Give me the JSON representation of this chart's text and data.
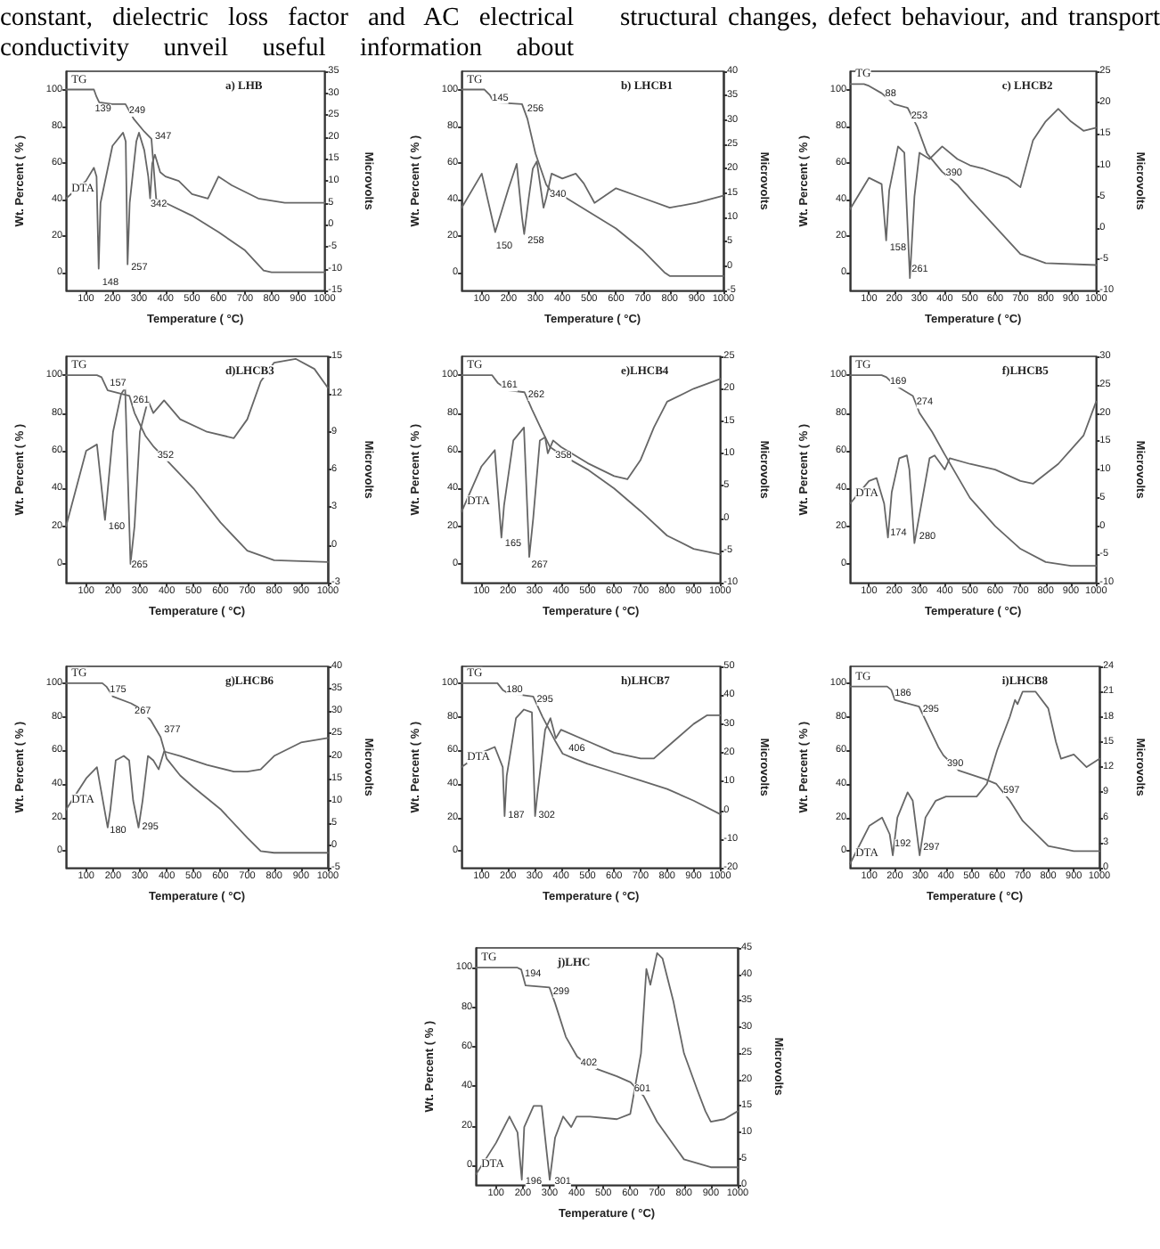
{
  "chart_data": [
    {
      "type": "line",
      "title": "a) LHB",
      "xlabel": "Temperature ( °C)",
      "ylabel": "Wt. Percent ( % )",
      "y2label": "Microvolts",
      "xlim": [
        25,
        1000
      ],
      "xticks": [
        100,
        200,
        300,
        400,
        500,
        600,
        700,
        800,
        900,
        1000
      ],
      "ylim": [
        -10,
        110
      ],
      "yticks": [
        0,
        20,
        40,
        60,
        80,
        100
      ],
      "y2lim": [
        -15,
        35
      ],
      "y2ticks": [
        -15,
        -10,
        -5,
        0,
        5,
        10,
        15,
        20,
        25,
        30,
        35
      ],
      "marker": "none",
      "legend": false,
      "series": [
        {
          "name": "TG",
          "color": "#666666",
          "x": [
            25,
            130,
            140,
            150,
            200,
            249,
            280,
            320,
            347,
            355,
            365,
            400,
            500,
            600,
            700,
            770,
            800,
            1000
          ],
          "values": [
            100,
            100,
            96,
            93,
            92,
            92,
            84,
            77,
            73,
            58,
            40,
            38,
            31,
            22,
            12,
            1,
            0,
            0
          ]
        },
        {
          "name": "DTA",
          "color": "#666666",
          "axis": "y2",
          "x": [
            25,
            100,
            130,
            140,
            148,
            155,
            200,
            240,
            250,
            257,
            265,
            290,
            300,
            320,
            335,
            342,
            350,
            360,
            380,
            400,
            450,
            500,
            560,
            600,
            650,
            750,
            850,
            1000
          ],
          "values": [
            6,
            10,
            13,
            11,
            -10,
            5,
            18,
            21,
            19,
            -9,
            5,
            19,
            21,
            17,
            11,
            6,
            14,
            16,
            12,
            11,
            10,
            7,
            6,
            11,
            9,
            6,
            5,
            5
          ]
        }
      ],
      "annotations": [
        "constant, dielectric loss factor and AC electrical conductivity unveil useful information about",
        "structural changes, defect behaviour, and transport",
        {
          "text": "139",
          "x": 120,
          "y": 93
        },
        {
          "text": "249",
          "x": 249,
          "y": 92
        },
        {
          "text": "347",
          "x": 347,
          "y": 78
        },
        {
          "text": "342",
          "x": 330,
          "y": 41
        },
        {
          "text": "148",
          "x": 148,
          "y": -2
        },
        {
          "text": "257",
          "x": 257,
          "y": 6
        }
      ]
    },
    {
      "type": "line",
      "title": "b) LHCB1",
      "xlabel": "Temperature ( °C)",
      "ylabel": "Wt. Percent ( % )",
      "y2label": "Microvolts",
      "xlim": [
        25,
        1000
      ],
      "xticks": [
        100,
        200,
        300,
        400,
        500,
        600,
        700,
        800,
        900,
        1000
      ],
      "ylim": [
        -10,
        110
      ],
      "yticks": [
        0,
        20,
        40,
        60,
        80,
        100
      ],
      "y2lim": [
        -5,
        40
      ],
      "y2ticks": [
        -5,
        0,
        5,
        10,
        15,
        20,
        25,
        30,
        35,
        40
      ],
      "marker": "none",
      "legend": false,
      "series": [
        {
          "name": "TG",
          "color": "#666666",
          "x": [
            25,
            110,
            130,
            145,
            250,
            270,
            300,
            340,
            360,
            400,
            500,
            600,
            700,
            780,
            800,
            1000
          ],
          "values": [
            100,
            100,
            97,
            93,
            92,
            84,
            65,
            48,
            44,
            42,
            33,
            24,
            12,
            0,
            -2,
            -2
          ]
        },
        {
          "color": "#666666",
          "axis": "y2",
          "x": [
            25,
            100,
            150,
            200,
            230,
            250,
            258,
            275,
            290,
            305,
            330,
            340,
            360,
            400,
            450,
            480,
            520,
            600,
            700,
            800,
            900,
            1000
          ],
          "values": [
            12,
            19,
            7,
            16,
            21,
            10,
            6.6,
            14,
            20,
            21.5,
            12,
            14,
            19,
            18,
            19,
            17,
            13,
            16,
            14,
            12,
            13,
            14.5
          ]
        }
      ],
      "annotations": [
        {
          "text": "145",
          "x": 125,
          "y": 99
        },
        {
          "text": "256",
          "x": 256,
          "y": 93
        },
        {
          "text": "340",
          "x": 340,
          "y": 46
        },
        {
          "text": "150",
          "x": 140,
          "y": 18
        },
        {
          "text": "258",
          "x": 258,
          "y": 21
        }
      ]
    },
    {
      "type": "line",
      "title": "c) LHCB2",
      "xlabel": "Temperature ( °C)",
      "ylabel": "Wt. Percent ( % )",
      "y2label": "Microvolts",
      "xlim": [
        25,
        1000
      ],
      "xticks": [
        100,
        200,
        300,
        400,
        500,
        600,
        700,
        800,
        900,
        1000
      ],
      "ylim": [
        -10,
        110
      ],
      "yticks": [
        0,
        20,
        40,
        60,
        80,
        100
      ],
      "y2lim": [
        -10,
        25
      ],
      "y2ticks": [
        -10,
        -5,
        0,
        5,
        10,
        15,
        20,
        25
      ],
      "marker": "none",
      "legend": false,
      "series": [
        {
          "name": "TG",
          "color": "#666666",
          "x": [
            25,
            80,
            100,
            150,
            200,
            253,
            290,
            330,
            390,
            450,
            500,
            600,
            700,
            800,
            1000
          ],
          "values": [
            103,
            103,
            102,
            98,
            92,
            90,
            80,
            65,
            55,
            48,
            40,
            25,
            10,
            5,
            4
          ]
        },
        {
          "color": "#666666",
          "axis": "y2",
          "x": [
            25,
            100,
            150,
            168,
            180,
            215,
            240,
            262,
            280,
            300,
            340,
            390,
            450,
            500,
            550,
            650,
            700,
            750,
            800,
            850,
            900,
            950,
            1000
          ],
          "values": [
            3,
            8,
            7,
            -2,
            6,
            13,
            12,
            -8,
            5,
            12,
            11,
            13,
            11,
            10,
            9.5,
            8,
            6.5,
            14,
            17,
            19,
            17,
            15.5,
            16
          ]
        }
      ],
      "annotations": [
        {
          "text": "88",
          "x": 150,
          "y": 101
        },
        {
          "text": "253",
          "x": 253,
          "y": 89
        },
        {
          "text": "390",
          "x": 390,
          "y": 58
        },
        {
          "text": "158",
          "x": 168,
          "y": 17
        },
        {
          "text": "261",
          "x": 255,
          "y": 5
        }
      ]
    },
    {
      "type": "line",
      "title": "d)LHCB3",
      "xlabel": "Temperature ( °C)",
      "ylabel": "Wt. Percent ( % )",
      "y2label": "Microvolts",
      "xlim": [
        25,
        1000
      ],
      "xticks": [
        100,
        200,
        300,
        400,
        500,
        600,
        700,
        800,
        900,
        1000
      ],
      "ylim": [
        -10,
        110
      ],
      "yticks": [
        0,
        20,
        40,
        60,
        80,
        100
      ],
      "y2lim": [
        -3,
        15
      ],
      "y2ticks": [
        -3,
        0,
        3,
        6,
        9,
        12,
        15
      ],
      "marker": "none",
      "legend": false,
      "series": [
        {
          "name": "TG",
          "color": "#666666",
          "x": [
            25,
            140,
            157,
            180,
            261,
            280,
            320,
            352,
            400,
            500,
            600,
            700,
            800,
            1000
          ],
          "values": [
            100,
            100,
            99,
            92,
            89,
            80,
            68,
            62,
            55,
            40,
            22,
            7,
            2,
            1
          ]
        },
        {
          "color": "#666666",
          "axis": "y2",
          "x": [
            25,
            100,
            140,
            170,
            200,
            230,
            245,
            265,
            280,
            300,
            330,
            350,
            390,
            450,
            550,
            650,
            700,
            750,
            800,
            880,
            950,
            1000
          ],
          "values": [
            1.5,
            7.5,
            8,
            2,
            9,
            12,
            12.5,
            -1.5,
            1.5,
            9,
            11.5,
            10.5,
            11.5,
            10,
            9,
            8.5,
            10,
            13,
            14.5,
            14.8,
            14,
            12.5
          ]
        }
      ],
      "annotations": [
        {
          "text": "157",
          "x": 175,
          "y": 99
        },
        {
          "text": "261",
          "x": 261,
          "y": 90
        },
        {
          "text": "352",
          "x": 352,
          "y": 61
        },
        {
          "text": "160",
          "x": 170,
          "y": 23
        },
        {
          "text": "265",
          "x": 255,
          "y": 3
        }
      ]
    },
    {
      "type": "line",
      "title": "e)LHCB4",
      "xlabel": "Temperature ( °C)",
      "ylabel": "Wt. Percent ( % )",
      "y2label": "Microvolts",
      "xlim": [
        25,
        1000
      ],
      "xticks": [
        100,
        200,
        300,
        400,
        500,
        600,
        700,
        800,
        900,
        1000
      ],
      "ylim": [
        -10,
        110
      ],
      "yticks": [
        0,
        20,
        40,
        60,
        80,
        100
      ],
      "y2lim": [
        -10,
        25
      ],
      "y2ticks": [
        -10,
        -5,
        0,
        5,
        10,
        15,
        20,
        25
      ],
      "marker": "none",
      "legend": false,
      "series": [
        {
          "name": "TG",
          "color": "#666666",
          "x": [
            25,
            140,
            161,
            200,
            262,
            290,
            330,
            358,
            400,
            500,
            600,
            700,
            800,
            900,
            1000
          ],
          "values": [
            100,
            100,
            96,
            92,
            91,
            82,
            70,
            62,
            58,
            50,
            40,
            28,
            15,
            8,
            5
          ]
        },
        {
          "name": "DTA",
          "color": "#666666",
          "axis": "y2",
          "x": [
            25,
            100,
            150,
            175,
            185,
            220,
            260,
            280,
            295,
            320,
            340,
            350,
            370,
            400,
            500,
            600,
            650,
            700,
            750,
            800,
            900,
            1000
          ],
          "values": [
            1,
            8,
            10.5,
            -3,
            2,
            12,
            14,
            -6,
            0,
            12,
            12.5,
            10,
            12,
            11,
            8.5,
            6.5,
            6,
            9,
            14,
            18,
            20,
            21.5
          ]
        }
      ],
      "annotations": [
        {
          "text": "161",
          "x": 161,
          "y": 98
        },
        {
          "text": "262",
          "x": 262,
          "y": 93
        },
        {
          "text": "358",
          "x": 365,
          "y": 61
        },
        {
          "text": "165",
          "x": 175,
          "y": 14
        },
        {
          "text": "267",
          "x": 275,
          "y": 3
        }
      ]
    },
    {
      "type": "line",
      "title": "f)LHCB5",
      "xlabel": "Temperature ( °C)",
      "ylabel": "Wt. Percent ( % )",
      "y2label": "Microvolts",
      "xlim": [
        25,
        1000
      ],
      "xticks": [
        100,
        200,
        300,
        400,
        500,
        600,
        700,
        800,
        900,
        1000
      ],
      "ylim": [
        -10,
        110
      ],
      "yticks": [
        0,
        20,
        40,
        60,
        80,
        100
      ],
      "y2lim": [
        -10,
        30
      ],
      "y2ticks": [
        -10,
        -5,
        0,
        5,
        10,
        15,
        20,
        25,
        30
      ],
      "marker": "none",
      "legend": false,
      "series": [
        {
          "name": "TG",
          "color": "#666666",
          "x": [
            25,
            150,
            169,
            200,
            274,
            300,
            350,
            400,
            500,
            600,
            700,
            800,
            900,
            1000
          ],
          "values": [
            100,
            100,
            99,
            95,
            89,
            80,
            70,
            58,
            35,
            20,
            8,
            1,
            -1,
            -1
          ]
        },
        {
          "name": "DTA",
          "color": "#666666",
          "axis": "y2",
          "x": [
            25,
            100,
            130,
            160,
            175,
            190,
            220,
            250,
            260,
            280,
            300,
            340,
            360,
            400,
            420,
            500,
            600,
            700,
            750,
            850,
            950,
            1000
          ],
          "values": [
            4,
            8,
            8.5,
            4,
            -2,
            6,
            12,
            12.5,
            10,
            -3,
            2,
            12,
            12.5,
            10,
            12,
            11,
            10,
            8,
            7.5,
            11,
            16,
            22
          ]
        }
      ],
      "annotations": [
        {
          "text": "169",
          "x": 169,
          "y": 100
        },
        {
          "text": "274",
          "x": 274,
          "y": 89
        },
        {
          "text": "174",
          "x": 170,
          "y": 20
        },
        {
          "text": "280",
          "x": 285,
          "y": 18
        }
      ]
    },
    {
      "type": "line",
      "title": "g)LHCB6",
      "xlabel": "Temperature ( °C)",
      "ylabel": "Wt. Percent ( % )",
      "y2label": "Microvolts",
      "xlim": [
        25,
        1000
      ],
      "xticks": [
        100,
        200,
        300,
        400,
        500,
        600,
        700,
        800,
        900,
        1000
      ],
      "ylim": [
        -10,
        110
      ],
      "yticks": [
        0,
        20,
        40,
        60,
        80,
        100
      ],
      "y2lim": [
        -5,
        40
      ],
      "y2ticks": [
        -5,
        0,
        5,
        10,
        15,
        20,
        25,
        30,
        35,
        40
      ],
      "marker": "none",
      "legend": false,
      "series": [
        {
          "name": "TG",
          "color": "#666666",
          "x": [
            25,
            160,
            175,
            200,
            267,
            300,
            340,
            377,
            400,
            450,
            500,
            600,
            700,
            750,
            800,
            1000
          ],
          "values": [
            100,
            100,
            98,
            92,
            88,
            85,
            78,
            68,
            55,
            45,
            38,
            25,
            8,
            0,
            -1,
            -1
          ]
        },
        {
          "name": "DTA",
          "color": "#666666",
          "axis": "y2",
          "x": [
            25,
            100,
            140,
            180,
            190,
            210,
            240,
            260,
            275,
            295,
            310,
            330,
            350,
            370,
            390,
            450,
            550,
            650,
            700,
            750,
            800,
            900,
            1000
          ],
          "values": [
            8,
            15,
            17.5,
            4,
            8,
            19,
            20,
            19,
            10,
            4,
            10,
            20,
            19,
            17,
            21,
            20,
            18,
            16.5,
            16.5,
            17,
            20,
            23,
            24
          ]
        }
      ],
      "annotations": [
        {
          "text": "175",
          "x": 175,
          "y": 100
        },
        {
          "text": "267",
          "x": 267,
          "y": 87
        },
        {
          "text": "377",
          "x": 377,
          "y": 76
        },
        {
          "text": "180",
          "x": 175,
          "y": 16
        },
        {
          "text": "295",
          "x": 295,
          "y": 18
        }
      ]
    },
    {
      "type": "line",
      "title": "h)LHCB7",
      "xlabel": "Temperature ( °C)",
      "ylabel": "Wt. Percent ( % )",
      "y2label": "Microvolts",
      "xlim": [
        25,
        1000
      ],
      "xticks": [
        100,
        200,
        300,
        400,
        500,
        600,
        700,
        800,
        900,
        1000
      ],
      "ylim": [
        -10,
        110
      ],
      "yticks": [
        0,
        20,
        40,
        60,
        80,
        100
      ],
      "y2lim": [
        -20,
        50
      ],
      "y2ticks": [
        -20,
        -10,
        0,
        10,
        20,
        30,
        40,
        50
      ],
      "marker": "none",
      "legend": false,
      "series": [
        {
          "name": "TG",
          "color": "#666666",
          "x": [
            25,
            160,
            180,
            200,
            295,
            330,
            380,
            406,
            450,
            500,
            600,
            700,
            800,
            900,
            1000
          ],
          "values": [
            100,
            100,
            96,
            94,
            92,
            80,
            65,
            58,
            55,
            52,
            47,
            42,
            37,
            30,
            22
          ]
        },
        {
          "name": "DTA",
          "color": "#666666",
          "axis": "y2",
          "x": [
            25,
            100,
            150,
            180,
            187,
            195,
            230,
            260,
            290,
            302,
            310,
            340,
            360,
            380,
            400,
            500,
            600,
            700,
            750,
            800,
            900,
            950,
            1000
          ],
          "values": [
            15,
            20,
            22,
            15,
            -2,
            12,
            32,
            35,
            34,
            -2,
            5,
            28,
            32,
            25,
            28,
            24,
            20,
            18,
            18,
            22,
            30,
            33,
            33
          ]
        }
      ],
      "annotations": [
        {
          "text": "180",
          "x": 180,
          "y": 100
        },
        {
          "text": "295",
          "x": 295,
          "y": 94
        },
        {
          "text": "406",
          "x": 415,
          "y": 65
        },
        {
          "text": "187",
          "x": 187,
          "y": 25
        },
        {
          "text": "302",
          "x": 302,
          "y": 25
        }
      ]
    },
    {
      "type": "line",
      "title": "i)LHCB8",
      "xlabel": "Temperature ( °C)",
      "ylabel": "Wt. Percent ( % )",
      "y2label": "Microvolts",
      "xlim": [
        25,
        1000
      ],
      "xticks": [
        100,
        200,
        300,
        400,
        500,
        600,
        700,
        800,
        900,
        1000
      ],
      "ylim": [
        -10,
        110
      ],
      "yticks": [
        0,
        20,
        40,
        60,
        80,
        100
      ],
      "y2lim": [
        0,
        24
      ],
      "y2ticks": [
        0,
        3,
        6,
        9,
        12,
        15,
        18,
        21,
        24
      ],
      "marker": "none",
      "legend": false,
      "series": [
        {
          "name": "TG",
          "color": "#666666",
          "x": [
            25,
            170,
            186,
            200,
            295,
            320,
            370,
            390,
            450,
            550,
            597,
            650,
            700,
            800,
            900,
            1000
          ],
          "values": [
            98,
            98,
            96,
            90,
            86,
            78,
            62,
            57,
            48,
            43,
            40,
            30,
            18,
            3,
            0,
            0
          ]
        },
        {
          "name": "DTA",
          "color": "#666666",
          "axis": "y2",
          "x": [
            25,
            100,
            150,
            180,
            192,
            210,
            250,
            270,
            297,
            320,
            360,
            400,
            450,
            520,
            560,
            600,
            650,
            670,
            680,
            700,
            750,
            800,
            830,
            850,
            900,
            950,
            1000
          ],
          "values": [
            0.5,
            5,
            6,
            4,
            1.5,
            6,
            9,
            8,
            1.5,
            6,
            8,
            8.5,
            8.5,
            8.5,
            10,
            14,
            18,
            20,
            19.5,
            21,
            21,
            19,
            15,
            13,
            13.5,
            12,
            13
          ]
        }
      ],
      "annotations": [
        {
          "text": "186",
          "x": 186,
          "y": 98
        },
        {
          "text": "295",
          "x": 295,
          "y": 88
        },
        {
          "text": "390",
          "x": 390,
          "y": 56
        },
        {
          "text": "597",
          "x": 610,
          "y": 40
        },
        {
          "text": "192",
          "x": 185,
          "y": 8
        },
        {
          "text": "297",
          "x": 297,
          "y": 6
        }
      ]
    },
    {
      "type": "line",
      "title": "j)LHC",
      "xlabel": "Temperature ( °C)",
      "ylabel": "Wt. Percent ( % )",
      "y2label": "Microvolts",
      "xlim": [
        25,
        1000
      ],
      "xticks": [
        100,
        200,
        300,
        400,
        500,
        600,
        700,
        800,
        900,
        1000
      ],
      "ylim": [
        -10,
        110
      ],
      "yticks": [
        0,
        20,
        40,
        60,
        80,
        100
      ],
      "y2lim": [
        0,
        45
      ],
      "y2ticks": [
        0,
        5,
        10,
        15,
        20,
        25,
        30,
        35,
        40,
        45
      ],
      "marker": "none",
      "legend": false,
      "series": [
        {
          "name": "TG",
          "color": "#666666",
          "x": [
            25,
            180,
            194,
            210,
            299,
            320,
            360,
            402,
            450,
            550,
            601,
            650,
            700,
            800,
            900,
            1000
          ],
          "values": [
            100,
            100,
            99,
            91,
            90,
            82,
            65,
            55,
            50,
            45,
            42,
            35,
            22,
            3,
            -1,
            -1
          ]
        },
        {
          "name": "DTA",
          "color": "#666666",
          "axis": "y2",
          "x": [
            25,
            100,
            150,
            180,
            196,
            205,
            240,
            270,
            300,
            320,
            350,
            380,
            400,
            450,
            550,
            600,
            640,
            660,
            675,
            700,
            720,
            760,
            800,
            850,
            880,
            900,
            950,
            1000
          ],
          "values": [
            2,
            8,
            13,
            10,
            1,
            11,
            15,
            15,
            1,
            9,
            13,
            11,
            13,
            13,
            12.5,
            13.5,
            25,
            41,
            38,
            44,
            43,
            35,
            25,
            18,
            14,
            12,
            12.5,
            14
          ]
        }
      ],
      "annotations": [
        {
          "text": "194",
          "x": 194,
          "y": 100
        },
        {
          "text": "299",
          "x": 299,
          "y": 91
        },
        {
          "text": "402",
          "x": 402,
          "y": 55
        },
        {
          "text": "601",
          "x": 601,
          "y": 42
        },
        {
          "text": "196",
          "x": 196,
          "y": -5
        },
        {
          "text": "301",
          "x": 305,
          "y": -5
        }
      ]
    }
  ]
}
